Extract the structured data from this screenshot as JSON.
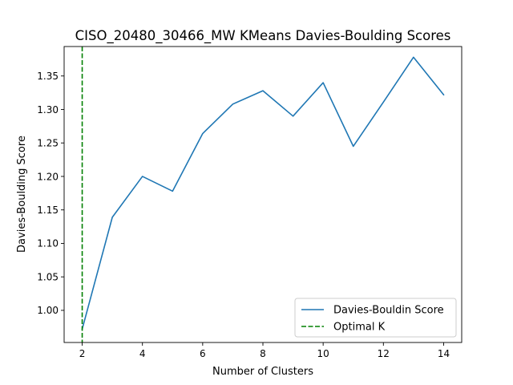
{
  "chart_data": {
    "type": "line",
    "title": "CISO_20480_30466_MW KMeans Davies-Boulding Scores",
    "xlabel": "Number of Clusters",
    "ylabel": "Davies-Boulding Score",
    "xlim": [
      1.4,
      14.6
    ],
    "ylim": [
      0.952,
      1.394
    ],
    "xticks": [
      2,
      4,
      6,
      8,
      10,
      12,
      14
    ],
    "xtick_labels": [
      "2",
      "4",
      "6",
      "8",
      "10",
      "12",
      "14"
    ],
    "yticks": [
      1.0,
      1.05,
      1.1,
      1.15,
      1.2,
      1.25,
      1.3,
      1.35
    ],
    "ytick_labels": [
      "1.00",
      "1.05",
      "1.10",
      "1.15",
      "1.20",
      "1.25",
      "1.30",
      "1.35"
    ],
    "grid": false,
    "legend_position": "lower-right",
    "series": [
      {
        "name": "Davies-Bouldin Score",
        "color": "#1f77b4",
        "style": "solid",
        "x": [
          2,
          3,
          4,
          5,
          6,
          7,
          8,
          9,
          10,
          11,
          12,
          13,
          14
        ],
        "y": [
          0.972,
          1.139,
          1.2,
          1.178,
          1.264,
          1.308,
          1.328,
          1.29,
          1.34,
          1.245,
          1.311,
          1.378,
          1.322
        ]
      }
    ],
    "vlines": [
      {
        "name": "Optimal K",
        "x": 2,
        "color": "#008000",
        "style": "dashed"
      }
    ]
  }
}
